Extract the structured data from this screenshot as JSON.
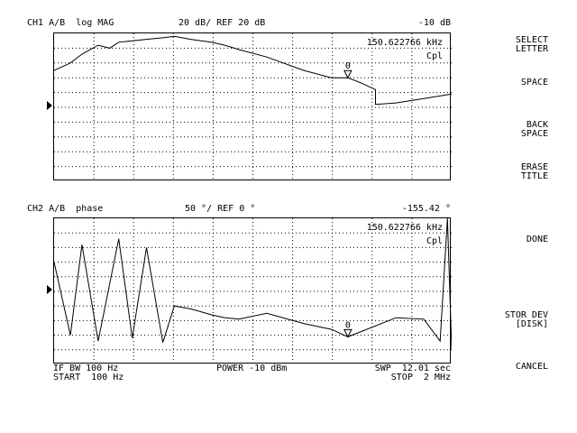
{
  "ch1": {
    "label": "CH1",
    "param": "A/B",
    "format": "log MAG",
    "scale": "20 dB/ REF 20 dB",
    "marker_value": "-10 dB",
    "marker_freq": "150.622766 kHz",
    "cpl": "Cpl",
    "marker_number": "0"
  },
  "ch2": {
    "label": "CH2",
    "param": "A/B",
    "format": "phase",
    "scale": "50 °/ REF 0 °",
    "marker_value": "-155.42 °",
    "marker_freq": "150.622766 kHz",
    "cpl": "Cpl",
    "marker_number": "0"
  },
  "footer": {
    "if_bw": "IF BW 100 Hz",
    "power": "POWER -10 dBm",
    "swp": "SWP  12.01 sec",
    "start": "START  100 Hz",
    "stop": "STOP  2 MHz"
  },
  "softkeys": [
    {
      "label": "SELECT\nLETTER"
    },
    {
      "label": "SPACE"
    },
    {
      "label": "BACK\nSPACE"
    },
    {
      "label": "ERASE\nTITLE"
    },
    {
      "label": "DONE"
    },
    {
      "label": "STOR DEV\n[DISK]"
    },
    {
      "label": "CANCEL"
    }
  ],
  "chart_data": [
    {
      "type": "line",
      "title": "CH1 A/B log MAG",
      "x_scale": "log",
      "xlim": [
        100,
        2000000
      ],
      "y_divisions": 10,
      "grid": true,
      "series": [
        {
          "x": [
            100,
            150,
            200,
            300,
            400,
            500,
            700,
            1000,
            1500,
            2000,
            3000,
            5000,
            7000,
            10000,
            20000,
            50000,
            100000,
            150622.766,
            200000,
            300000,
            300001,
            500000,
            1000000,
            2000000
          ],
          "values": [
            -5,
            0,
            6,
            12,
            10,
            14,
            15,
            16,
            17,
            18,
            16,
            14,
            12,
            9,
            4,
            -5,
            -10,
            -10,
            -13,
            -18,
            -28,
            -27,
            -24,
            -21
          ]
        }
      ]
    },
    {
      "type": "line",
      "title": "CH2 A/B phase",
      "x_scale": "log",
      "xlim": [
        100,
        2000000
      ],
      "y_divisions": 10,
      "grid": true,
      "series": [
        {
          "x": [
            100,
            150,
            200,
            300,
            500,
            700,
            1000,
            1500,
            2000,
            3000,
            5000,
            7000,
            10000,
            20000,
            50000,
            100000,
            150622.766,
            200000,
            500000,
            1000000,
            1500000,
            1800000,
            2000000
          ],
          "values": [
            100,
            -150,
            160,
            -170,
            180,
            -160,
            150,
            -175,
            -50,
            -60,
            -80,
            -90,
            -95,
            -75,
            -110,
            -130,
            -155.42,
            -140,
            -90,
            -95,
            -170,
            250,
            -200
          ]
        }
      ]
    }
  ]
}
